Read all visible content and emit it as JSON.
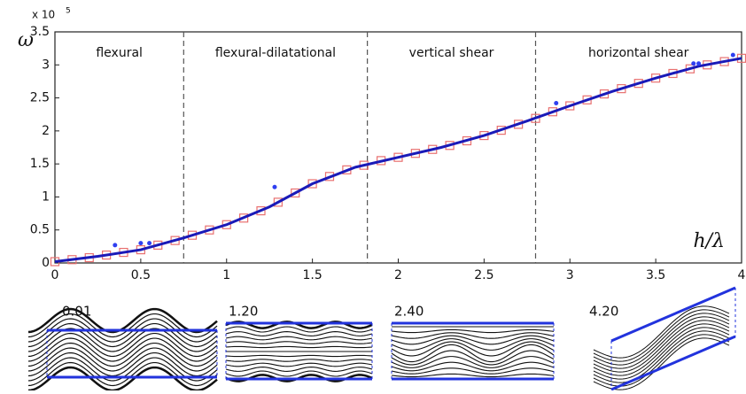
{
  "chart_data": {
    "type": "line",
    "y_label": "ω",
    "x_label": "h/λ",
    "y_multiplier": "x 10",
    "y_multiplier_exponent": "5",
    "xlim": [
      0,
      4
    ],
    "ylim": [
      0,
      3.5
    ],
    "xticks": [
      0,
      0.5,
      1,
      1.5,
      2,
      2.5,
      3,
      3.5,
      4
    ],
    "yticks": [
      0,
      0.5,
      1,
      1.5,
      2,
      2.5,
      3,
      3.5
    ],
    "regions": [
      "flexural",
      "flexural-dilatational",
      "vertical shear",
      "horizontal shear"
    ],
    "dividers": [
      0.75,
      1.82,
      2.8
    ],
    "series": [
      {
        "kind": "square",
        "color": "#e87070",
        "x": [
          0,
          0.1,
          0.2,
          0.3,
          0.4,
          0.5,
          0.6,
          0.7,
          0.8,
          0.9,
          1.0,
          1.1,
          1.2,
          1.3,
          1.4,
          1.5,
          1.6,
          1.7,
          1.8,
          1.9,
          2.0,
          2.1,
          2.2,
          2.3,
          2.4,
          2.5,
          2.6,
          2.7,
          2.8,
          2.9,
          3.0,
          3.1,
          3.2,
          3.3,
          3.4,
          3.5,
          3.6,
          3.7,
          3.8,
          3.9,
          4.0
        ],
        "values": [
          0.02,
          0.05,
          0.08,
          0.12,
          0.16,
          0.2,
          0.27,
          0.34,
          0.42,
          0.5,
          0.58,
          0.68,
          0.79,
          0.92,
          1.06,
          1.2,
          1.31,
          1.41,
          1.48,
          1.55,
          1.6,
          1.66,
          1.72,
          1.78,
          1.85,
          1.93,
          2.01,
          2.1,
          2.19,
          2.29,
          2.38,
          2.47,
          2.56,
          2.64,
          2.72,
          2.8,
          2.87,
          2.94,
          3.0,
          3.05,
          3.1
        ]
      },
      {
        "kind": "line",
        "color": "#1a1ab8",
        "x": [
          0,
          0.25,
          0.5,
          0.75,
          1.0,
          1.25,
          1.5,
          1.75,
          2.0,
          2.25,
          2.5,
          2.75,
          3.0,
          3.25,
          3.5,
          3.75,
          4.0
        ],
        "values": [
          0.02,
          0.1,
          0.2,
          0.38,
          0.58,
          0.85,
          1.2,
          1.45,
          1.6,
          1.75,
          1.93,
          2.15,
          2.38,
          2.6,
          2.8,
          2.98,
          3.1
        ]
      },
      {
        "kind": "dot",
        "color": "#2f3ff0",
        "x": [
          0.35,
          0.5,
          0.55,
          1.28,
          2.92,
          3.72,
          3.75,
          3.95
        ],
        "values": [
          0.27,
          0.3,
          0.3,
          1.15,
          2.42,
          3.02,
          3.02,
          3.15
        ]
      }
    ]
  },
  "insets": [
    {
      "label": "0.01"
    },
    {
      "label": "1.20"
    },
    {
      "label": "2.40"
    },
    {
      "label": "4.20"
    }
  ]
}
